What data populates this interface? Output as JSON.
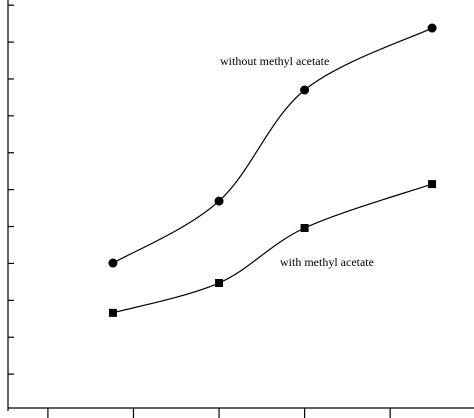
{
  "chart_data": {
    "type": "line",
    "x": [
      1.76,
      3.0,
      4.0,
      5.49
    ],
    "series": [
      {
        "name": "without methyl acetate",
        "color": "#000000",
        "marker": "circle",
        "values": [
          4.01,
          5.69,
          8.7,
          10.38
        ]
      },
      {
        "name": "with methyl acetate",
        "color": "#000000",
        "marker": "square",
        "values": [
          2.66,
          3.47,
          4.96,
          6.15
        ]
      }
    ],
    "xlim": [
      0.44,
      5.98
    ],
    "xticks": [
      1,
      2,
      3,
      4,
      5
    ],
    "ylim": [
      0,
      11.14
    ],
    "yticks": [
      1,
      2,
      3,
      4,
      5,
      6,
      7,
      8,
      9,
      10,
      11
    ],
    "grid": false
  }
}
